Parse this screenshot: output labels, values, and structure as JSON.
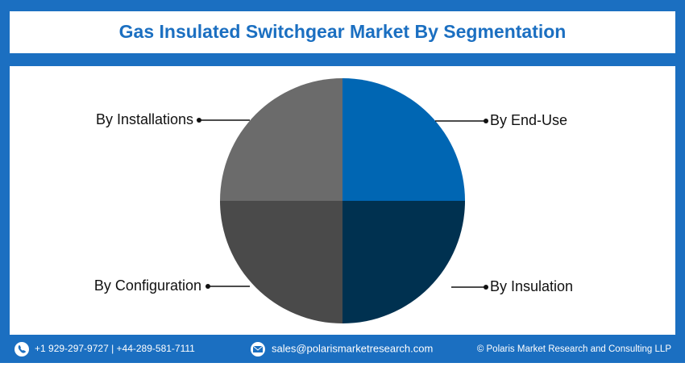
{
  "chart_data": {
    "type": "pie",
    "title": "Gas Insulated Switchgear Market By Segmentation",
    "categories": [
      "By End-Use",
      "By Insulation",
      "By Configuration",
      "By Installations"
    ],
    "values": [
      25,
      25,
      25,
      25
    ],
    "colors": [
      "#0066b3",
      "#003150",
      "#4a4a4a",
      "#6b6b6b"
    ]
  },
  "footer": {
    "phone": "+1 929-297-9727 | +44-289-581-7111",
    "email": "sales@polarismarketresearch.com",
    "copyright": "© Polaris Market Research and Consulting LLP"
  }
}
